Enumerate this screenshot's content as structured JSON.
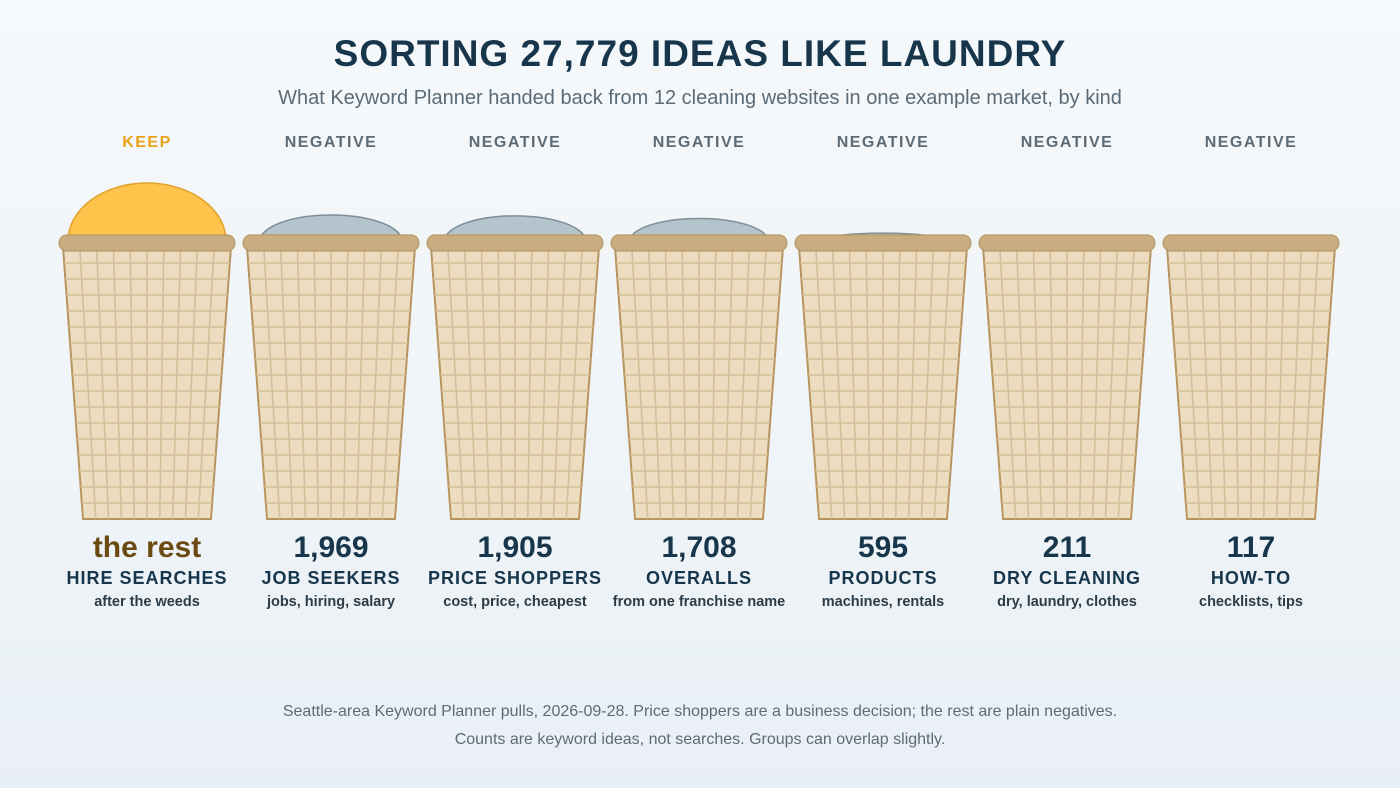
{
  "title": "SORTING 27,779 IDEAS LIKE LAUNDRY",
  "subtitle": "What Keyword Planner handed back from 12 cleaning websites in one example market, by kind",
  "chart_data": {
    "type": "bar",
    "total_ideas": 27779,
    "categories": [
      "HIRE SEARCHES",
      "JOB SEEKERS",
      "PRICE SHOPPERS",
      "OVERALLS",
      "PRODUCTS",
      "DRY CLEANING",
      "HOW-TO"
    ],
    "values": [
      null,
      1969,
      1905,
      1708,
      595,
      211,
      117
    ],
    "count_labels": [
      "the rest",
      "1,969",
      "1,905",
      "1,708",
      "595",
      "211",
      "117"
    ],
    "tags": [
      "KEEP",
      "NEGATIVE",
      "NEGATIVE",
      "NEGATIVE",
      "NEGATIVE",
      "NEGATIVE",
      "NEGATIVE"
    ],
    "descriptions": [
      "after the weeds",
      "jobs, hiring, salary",
      "cost, price, cheapest",
      "from one franchise name",
      "machines, rentals",
      "dry, laundry, clothes",
      "checklists, tips"
    ],
    "colors": {
      "keep_fill": "#ffc24a",
      "negative_fill": "#b4c4cc",
      "basket": "#ecdcc0",
      "rim": "#c9ac80"
    }
  },
  "footnote_1": "Seattle-area Keyword Planner pulls, 2026-09-28. Price shoppers are a business decision; the rest are plain negatives.",
  "footnote_2": "Counts are keyword ideas, not searches. Groups can overlap slightly."
}
